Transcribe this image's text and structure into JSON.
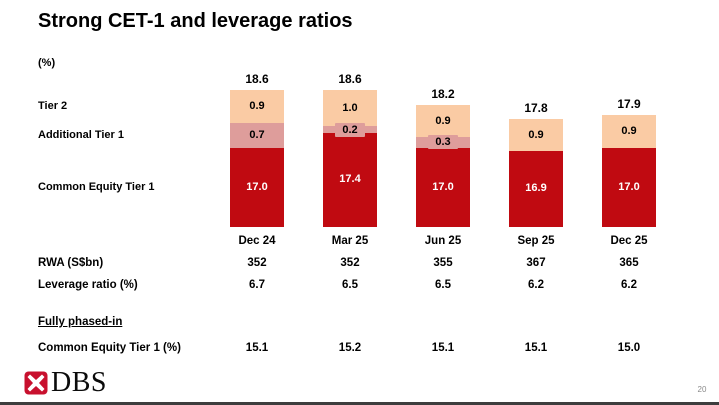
{
  "slide": {
    "title": "Strong CET-1 and leverage ratios",
    "page_number": "20",
    "logo": {
      "text": "DBS",
      "mark_color": "#C8102E"
    }
  },
  "chart_data": {
    "type": "bar",
    "stacked": true,
    "title": "Strong CET-1 and leverage ratios",
    "ylabel": "(%)",
    "ylim": [
      14.8,
      19.2
    ],
    "grid": false,
    "legend_position": "left-side-labels",
    "categories": [
      "Dec 24",
      "Mar 25",
      "Jun 25",
      "Sep 25",
      "Dec 25"
    ],
    "series": [
      {
        "name": "Common Equity Tier 1",
        "color": "#C00A11",
        "label_color": "#FFFFFF",
        "values": [
          17.0,
          17.4,
          17.0,
          16.9,
          17.0
        ],
        "labels": [
          "17.0",
          "17.4",
          "17.0",
          "16.9",
          "17.0"
        ]
      },
      {
        "name": "Additional Tier 1",
        "color": "#DE9D9B",
        "label_color": "#000000",
        "values": [
          0.7,
          0.2,
          0.3,
          0,
          0
        ],
        "labels": [
          "0.7",
          "0.2",
          "0.3",
          "",
          ""
        ]
      },
      {
        "name": "Tier 2",
        "color": "#FACBA4",
        "label_color": "#000000",
        "values": [
          0.9,
          1.0,
          0.9,
          0.9,
          0.9
        ],
        "labels": [
          "0.9",
          "1.0",
          "0.9",
          "0.9",
          "0.9"
        ]
      }
    ],
    "totals": [
      "18.6",
      "18.6",
      "18.2",
      "17.8",
      "17.9"
    ],
    "side_labels": [
      "Tier 2",
      "Additional Tier 1",
      "Common Equity Tier 1"
    ]
  },
  "metrics_table": {
    "rows": [
      {
        "label": "RWA (S$bn)",
        "values": [
          "352",
          "352",
          "355",
          "367",
          "365"
        ]
      },
      {
        "label": "Leverage ratio (%)",
        "values": [
          "6.7",
          "6.5",
          "6.5",
          "6.2",
          "6.2"
        ]
      }
    ]
  },
  "fully_phased_in": {
    "heading": "Fully phased-in",
    "rows": [
      {
        "label": "Common Equity Tier 1 (%)",
        "values": [
          "15.1",
          "15.2",
          "15.1",
          "15.1",
          "15.0"
        ]
      }
    ]
  }
}
